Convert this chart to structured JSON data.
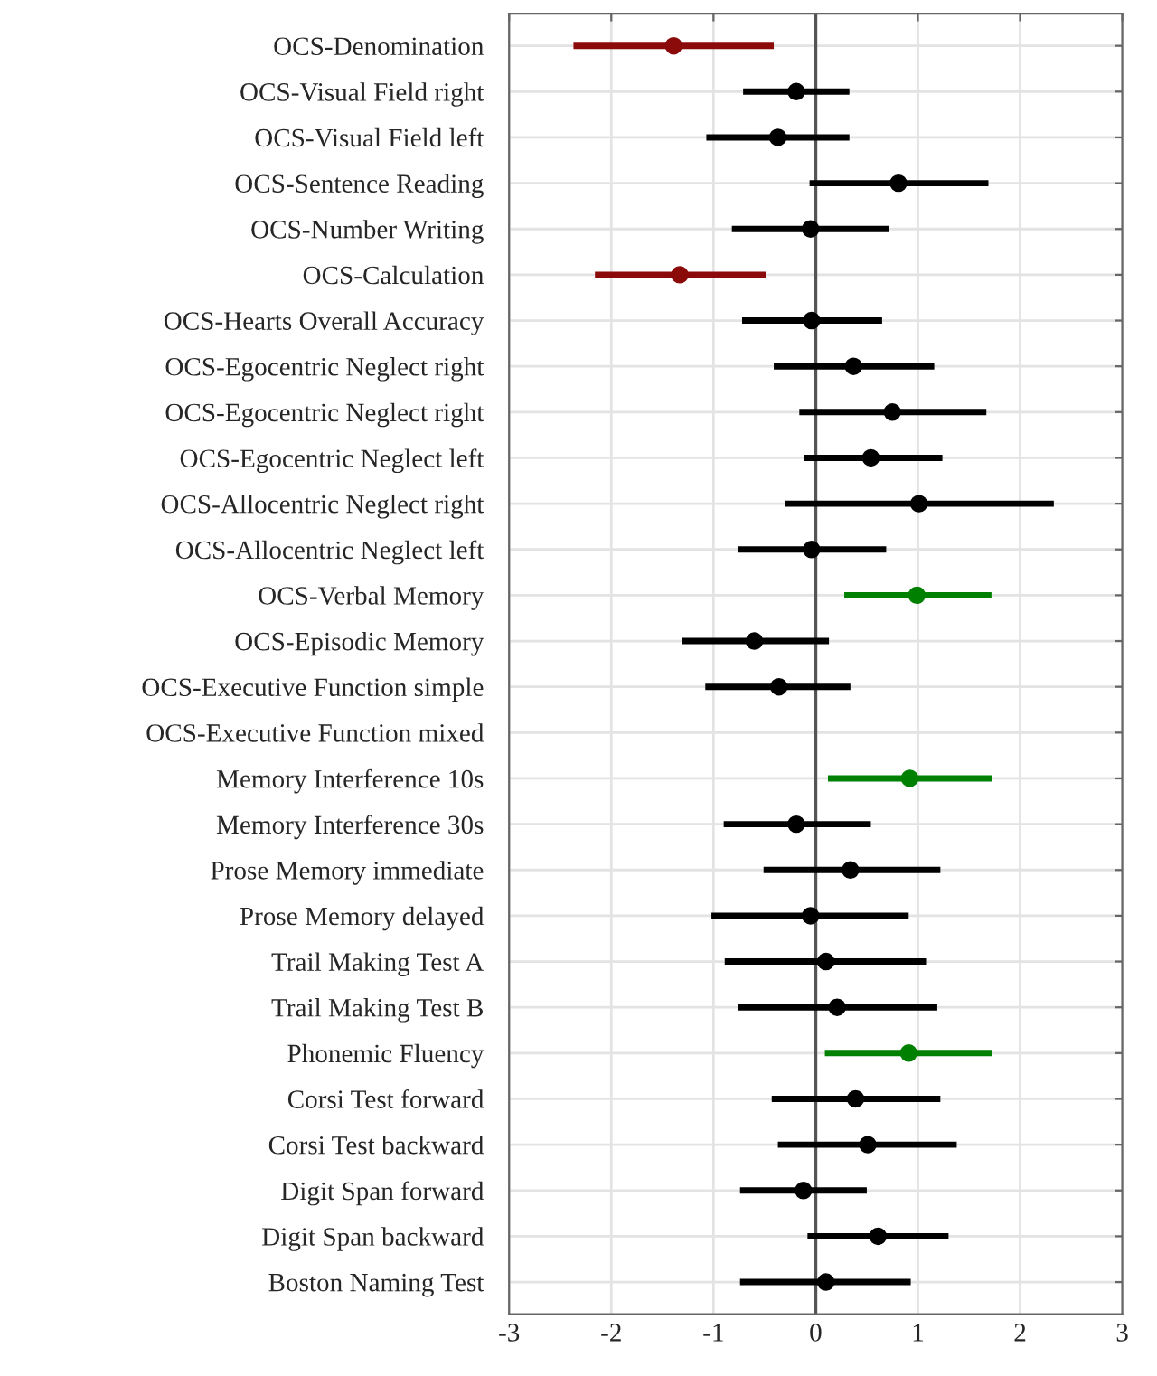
{
  "chart_data": {
    "type": "scatter",
    "orientation": "horizontal",
    "categories": [
      "OCS-Denomination",
      "OCS-Visual Field right",
      "OCS-Visual Field left",
      "OCS-Sentence Reading",
      "OCS-Number Writing",
      "OCS-Calculation",
      "OCS-Hearts Overall Accuracy",
      "OCS-Egocentric Neglect right",
      "OCS-Egocentric Neglect right",
      "OCS-Egocentric Neglect left",
      "OCS-Allocentric Neglect right",
      "OCS-Allocentric Neglect left",
      "OCS-Verbal Memory",
      "OCS-Episodic Memory",
      "OCS-Executive Function simple",
      "OCS-Executive Function mixed",
      "Memory Interference 10s",
      "Memory Interference 30s",
      "Prose Memory immediate",
      "Prose Memory delayed",
      "Trail Making Test A",
      "Trail Making Test B",
      "Phonemic Fluency",
      "Corsi Test forward",
      "Corsi Test backward",
      "Digit Span forward",
      "Digit Span backward",
      "Boston Naming Test"
    ],
    "values": [
      -1.39,
      -0.19,
      -0.37,
      0.81,
      -0.05,
      -1.33,
      -0.04,
      0.37,
      0.75,
      0.54,
      1.01,
      -0.04,
      0.99,
      -0.6,
      -0.36,
      null,
      0.92,
      -0.19,
      0.34,
      -0.05,
      0.1,
      0.21,
      0.91,
      0.39,
      0.51,
      -0.12,
      0.61,
      0.1
    ],
    "errors": [
      [
        -2.37,
        -0.41
      ],
      [
        -0.71,
        0.33
      ],
      [
        -1.07,
        0.33
      ],
      [
        -0.06,
        1.69
      ],
      [
        -0.82,
        0.72
      ],
      [
        -2.16,
        -0.49
      ],
      [
        -0.72,
        0.65
      ],
      [
        -0.41,
        1.16
      ],
      [
        -0.16,
        1.67
      ],
      [
        -0.11,
        1.24
      ],
      [
        -0.3,
        2.33
      ],
      [
        -0.76,
        0.69
      ],
      [
        0.28,
        1.72
      ],
      [
        -1.31,
        0.13
      ],
      [
        -1.08,
        0.34
      ],
      null,
      [
        0.12,
        1.73
      ],
      [
        -0.9,
        0.54
      ],
      [
        -0.51,
        1.22
      ],
      [
        -1.02,
        0.91
      ],
      [
        -0.89,
        1.08
      ],
      [
        -0.76,
        1.19
      ],
      [
        0.09,
        1.73
      ],
      [
        -0.43,
        1.22
      ],
      [
        -0.37,
        1.38
      ],
      [
        -0.74,
        0.5
      ],
      [
        -0.08,
        1.3
      ],
      [
        -0.74,
        0.93
      ]
    ],
    "colors": [
      "#8b0a0a",
      "#000000",
      "#000000",
      "#000000",
      "#000000",
      "#8b0a0a",
      "#000000",
      "#000000",
      "#000000",
      "#000000",
      "#000000",
      "#000000",
      "#008000",
      "#000000",
      "#000000",
      "#000000",
      "#008000",
      "#000000",
      "#000000",
      "#000000",
      "#000000",
      "#000000",
      "#008000",
      "#000000",
      "#000000",
      "#000000",
      "#000000",
      "#000000"
    ],
    "xlim": [
      -3,
      3
    ],
    "xticks": [
      -3,
      -2,
      -1,
      0,
      1,
      2,
      3
    ],
    "ref_lines": [
      {
        "axis": "x",
        "value": 0,
        "color": "#555555"
      }
    ],
    "grid": true,
    "marker": "circle"
  }
}
